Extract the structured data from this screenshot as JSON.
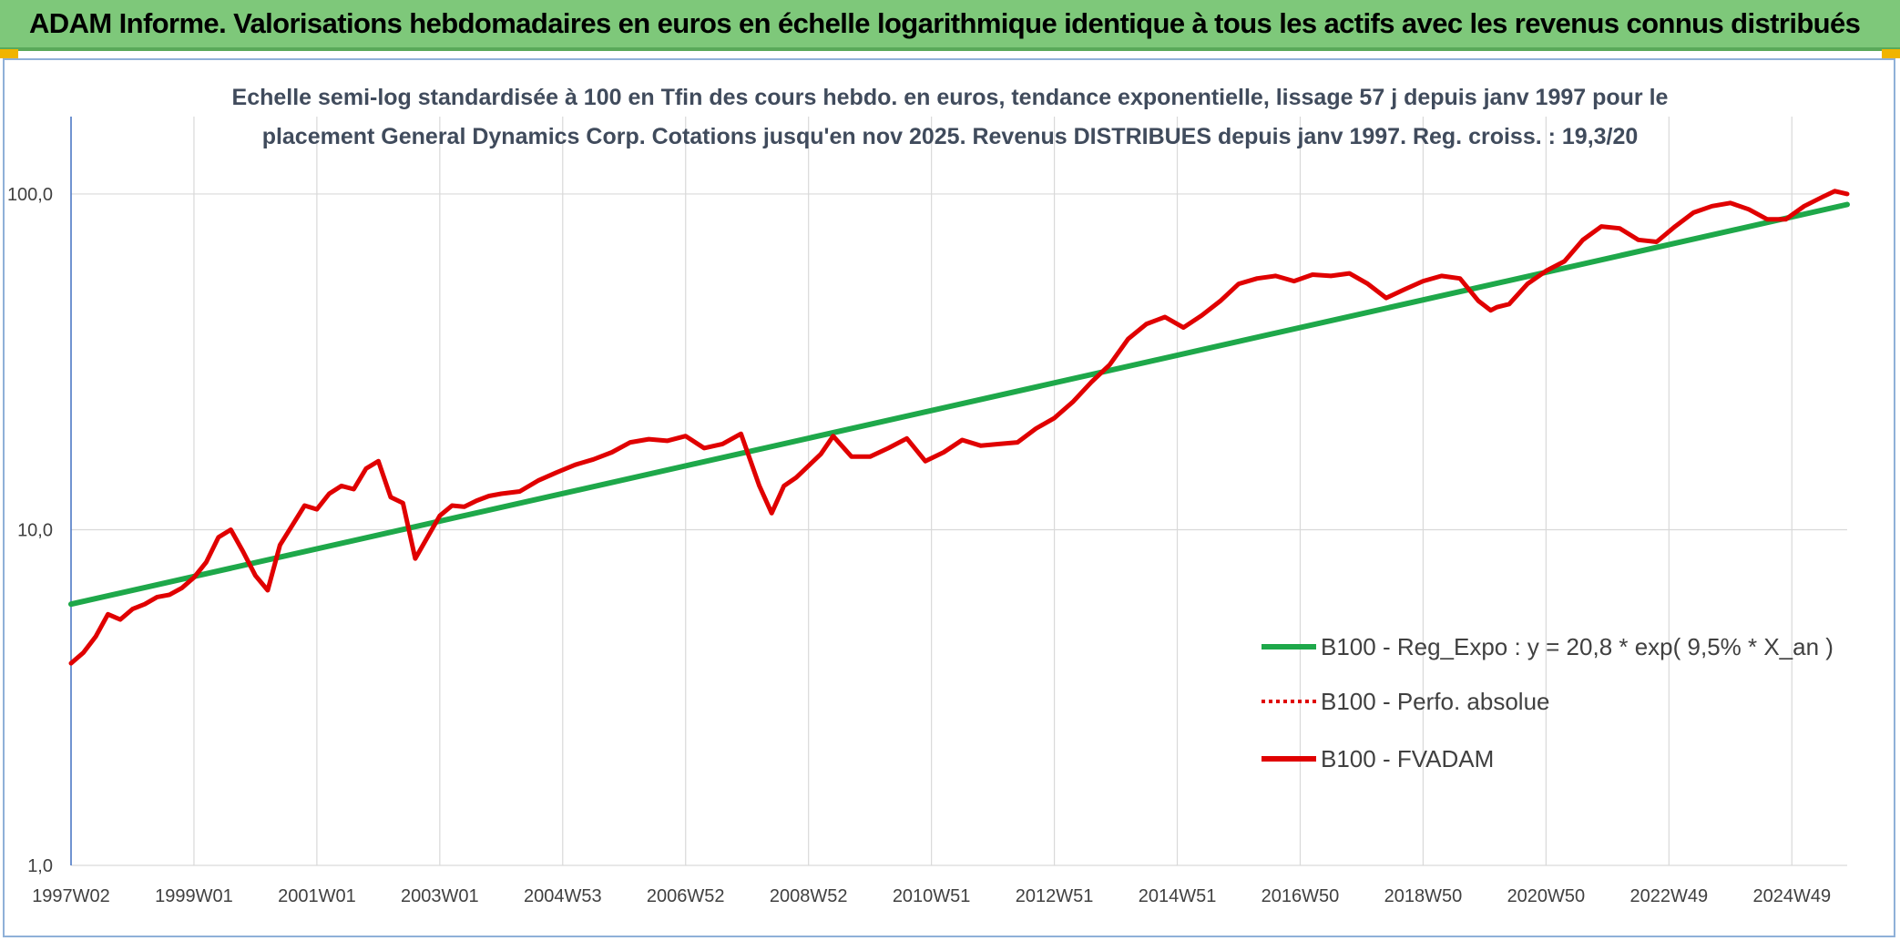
{
  "header": {
    "title": "ADAM Informe. Valorisations hebdomadaires en euros en échelle logarithmique identique à tous les actifs avec les revenus connus distribués"
  },
  "chart_data": {
    "type": "line",
    "title_line1": "Echelle semi-log standardisée à 100 en Tfin des cours hebdo. en euros, tendance exponentielle, lissage 57 j depuis janv 1997 pour le",
    "title_line2": "placement General Dynamics Corp. Cotations jusqu'en nov 2025. Revenus DISTRIBUES depuis janv 1997. Reg. croiss. : 19,3/20",
    "y_scale": "log",
    "ylim": [
      1,
      170
    ],
    "y_ticks": [
      {
        "value": 100,
        "label": "100,0"
      },
      {
        "value": 10,
        "label": "10,0"
      },
      {
        "value": 1,
        "label": "1,0"
      }
    ],
    "xlim": [
      1997.0,
      2025.9
    ],
    "x_ticks": [
      {
        "value": 1997.0,
        "label": "1997W02"
      },
      {
        "value": 1999.0,
        "label": "1999W01"
      },
      {
        "value": 2001.0,
        "label": "2001W01"
      },
      {
        "value": 2003.0,
        "label": "2003W01"
      },
      {
        "value": 2005.0,
        "label": "2004W53"
      },
      {
        "value": 2007.0,
        "label": "2006W52"
      },
      {
        "value": 2009.0,
        "label": "2008W52"
      },
      {
        "value": 2011.0,
        "label": "2010W51"
      },
      {
        "value": 2013.0,
        "label": "2012W51"
      },
      {
        "value": 2015.0,
        "label": "2014W51"
      },
      {
        "value": 2017.0,
        "label": "2016W50"
      },
      {
        "value": 2019.0,
        "label": "2018W50"
      },
      {
        "value": 2021.0,
        "label": "2020W50"
      },
      {
        "value": 2023.0,
        "label": "2022W49"
      },
      {
        "value": 2025.0,
        "label": "2024W49"
      }
    ],
    "legend_position": "bottom-right",
    "series": [
      {
        "name": "B100 - Reg_Expo : y = 20,8 * exp( 9,5% *  X_an )",
        "color": "#1ea84a",
        "style": "solid",
        "x": [
          1997.0,
          2025.9
        ],
        "y": [
          6.0,
          93.0
        ]
      },
      {
        "name": "B100 - Perfo. absolue",
        "color": "#e00000",
        "style": "dotted",
        "x": [],
        "y": []
      },
      {
        "name": "B100 - FVADAM",
        "color": "#e00000",
        "style": "solid",
        "x": [
          1997.0,
          1997.2,
          1997.4,
          1997.6,
          1997.8,
          1998.0,
          1998.2,
          1998.4,
          1998.6,
          1998.8,
          1999.0,
          1999.2,
          1999.4,
          1999.6,
          1999.8,
          2000.0,
          2000.2,
          2000.4,
          2000.6,
          2000.8,
          2001.0,
          2001.2,
          2001.4,
          2001.6,
          2001.8,
          2002.0,
          2002.2,
          2002.4,
          2002.6,
          2002.8,
          2003.0,
          2003.2,
          2003.4,
          2003.6,
          2003.8,
          2004.0,
          2004.3,
          2004.6,
          2004.9,
          2005.2,
          2005.5,
          2005.8,
          2006.1,
          2006.4,
          2006.7,
          2007.0,
          2007.3,
          2007.6,
          2007.9,
          2008.2,
          2008.4,
          2008.6,
          2008.8,
          2009.0,
          2009.2,
          2009.4,
          2009.7,
          2010.0,
          2010.3,
          2010.6,
          2010.9,
          2011.2,
          2011.5,
          2011.8,
          2012.1,
          2012.4,
          2012.7,
          2013.0,
          2013.3,
          2013.6,
          2013.9,
          2014.2,
          2014.5,
          2014.8,
          2015.1,
          2015.4,
          2015.7,
          2016.0,
          2016.3,
          2016.6,
          2016.9,
          2017.2,
          2017.5,
          2017.8,
          2018.1,
          2018.4,
          2018.7,
          2019.0,
          2019.3,
          2019.6,
          2019.9,
          2020.1,
          2020.2,
          2020.4,
          2020.7,
          2021.0,
          2021.3,
          2021.6,
          2021.9,
          2022.2,
          2022.5,
          2022.8,
          2023.1,
          2023.4,
          2023.7,
          2024.0,
          2024.3,
          2024.6,
          2024.9,
          2025.2,
          2025.5,
          2025.7,
          2025.9
        ],
        "y": [
          4.0,
          4.3,
          4.8,
          5.6,
          5.4,
          5.8,
          6.0,
          6.3,
          6.4,
          6.7,
          7.2,
          8.0,
          9.5,
          10.0,
          8.6,
          7.3,
          6.6,
          9.0,
          10.3,
          11.8,
          11.5,
          12.8,
          13.5,
          13.2,
          15.2,
          16.0,
          12.5,
          12.0,
          8.2,
          9.5,
          11.0,
          11.8,
          11.7,
          12.2,
          12.6,
          12.8,
          13.0,
          14.0,
          14.8,
          15.6,
          16.2,
          17.0,
          18.2,
          18.6,
          18.4,
          19.0,
          17.5,
          18.0,
          19.3,
          13.5,
          11.2,
          13.5,
          14.3,
          15.5,
          16.8,
          19.0,
          16.5,
          16.5,
          17.5,
          18.7,
          16.0,
          17.0,
          18.5,
          17.8,
          18.0,
          18.2,
          20.0,
          21.5,
          24.0,
          27.5,
          31.0,
          37.0,
          41.0,
          43.0,
          40.0,
          43.5,
          48.0,
          54.0,
          56.0,
          57.0,
          55.0,
          57.5,
          57.0,
          58.0,
          54.0,
          49.0,
          52.0,
          55.0,
          57.0,
          56.0,
          48.0,
          45.0,
          46.0,
          47.0,
          54.0,
          59.0,
          63.0,
          73.0,
          80.0,
          79.0,
          73.0,
          72.0,
          80.0,
          88.0,
          92.0,
          94.0,
          90.0,
          84.0,
          84.0,
          92.0,
          98.0,
          102.0,
          100.0
        ]
      }
    ]
  }
}
